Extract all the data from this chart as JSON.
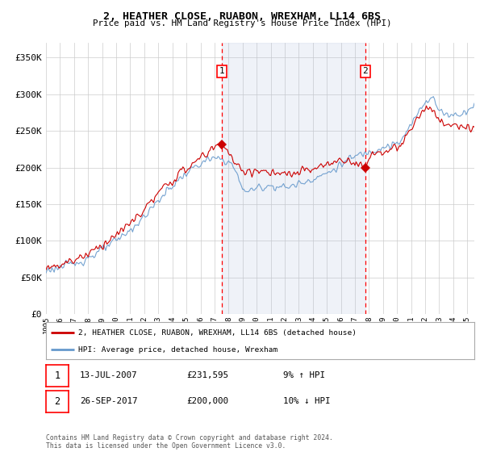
{
  "title": "2, HEATHER CLOSE, RUABON, WREXHAM, LL14 6BS",
  "subtitle": "Price paid vs. HM Land Registry's House Price Index (HPI)",
  "ylabel_ticks": [
    "£0",
    "£50K",
    "£100K",
    "£150K",
    "£200K",
    "£250K",
    "£300K",
    "£350K"
  ],
  "ytick_values": [
    0,
    50000,
    100000,
    150000,
    200000,
    250000,
    300000,
    350000
  ],
  "ylim": [
    0,
    370000
  ],
  "xlim_start": 1995.0,
  "xlim_end": 2025.5,
  "bg_color": "#ffffff",
  "plot_bg": "#ffffff",
  "grid_color": "#cccccc",
  "highlight_color": "#ddeeff",
  "red_color": "#cc0000",
  "blue_color": "#6699cc",
  "marker1_x": 2007.54,
  "marker1_y": 231595,
  "marker2_x": 2017.73,
  "marker2_y": 200000,
  "legend_label_red": "2, HEATHER CLOSE, RUABON, WREXHAM, LL14 6BS (detached house)",
  "legend_label_blue": "HPI: Average price, detached house, Wrexham",
  "annotation1_date": "13-JUL-2007",
  "annotation1_price": "£231,595",
  "annotation1_hpi": "9% ↑ HPI",
  "annotation2_date": "26-SEP-2017",
  "annotation2_price": "£200,000",
  "annotation2_hpi": "10% ↓ HPI",
  "footer": "Contains HM Land Registry data © Crown copyright and database right 2024.\nThis data is licensed under the Open Government Licence v3.0.",
  "xtick_years": [
    1995,
    1996,
    1997,
    1998,
    1999,
    2000,
    2001,
    2002,
    2003,
    2004,
    2005,
    2006,
    2007,
    2008,
    2009,
    2010,
    2011,
    2012,
    2013,
    2014,
    2015,
    2016,
    2017,
    2018,
    2019,
    2020,
    2021,
    2022,
    2023,
    2024,
    2025
  ]
}
